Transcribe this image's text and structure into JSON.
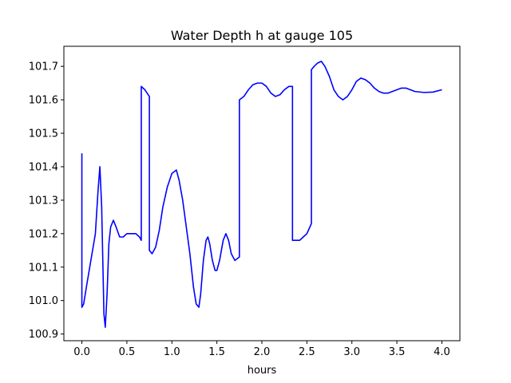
{
  "chart_data": {
    "type": "line",
    "title": "Water Depth h at gauge 105",
    "xlabel": "hours",
    "ylabel": "",
    "xlim": [
      -0.2,
      4.2
    ],
    "ylim": [
      100.88,
      101.76
    ],
    "xticks": [
      0.0,
      0.5,
      1.0,
      1.5,
      2.0,
      2.5,
      3.0,
      3.5,
      4.0
    ],
    "xtick_labels": [
      "0.0",
      "0.5",
      "1.0",
      "1.5",
      "2.0",
      "2.5",
      "3.0",
      "3.5",
      "4.0"
    ],
    "yticks": [
      100.9,
      101.0,
      101.1,
      101.2,
      101.3,
      101.4,
      101.5,
      101.6,
      101.7
    ],
    "ytick_labels": [
      "100.9",
      "101.0",
      "101.1",
      "101.2",
      "101.3",
      "101.4",
      "101.5",
      "101.6",
      "101.7"
    ],
    "grid": false,
    "series": [
      {
        "color": "#0000ff",
        "x": [
          0.0,
          0.0,
          0.02,
          0.05,
          0.1,
          0.15,
          0.18,
          0.2,
          0.22,
          0.245,
          0.26,
          0.28,
          0.3,
          0.32,
          0.35,
          0.38,
          0.42,
          0.46,
          0.5,
          0.55,
          0.6,
          0.64,
          0.66,
          0.66,
          0.7,
          0.75,
          0.75,
          0.78,
          0.82,
          0.86,
          0.9,
          0.95,
          1.0,
          1.05,
          1.08,
          1.12,
          1.16,
          1.2,
          1.24,
          1.27,
          1.3,
          1.32,
          1.35,
          1.38,
          1.4,
          1.42,
          1.45,
          1.48,
          1.5,
          1.53,
          1.57,
          1.6,
          1.63,
          1.66,
          1.7,
          1.75,
          1.75,
          1.8,
          1.85,
          1.9,
          1.95,
          2.0,
          2.05,
          2.1,
          2.15,
          2.2,
          2.25,
          2.3,
          2.34,
          2.34,
          2.38,
          2.42,
          2.46,
          2.5,
          2.55,
          2.55,
          2.58,
          2.62,
          2.66,
          2.7,
          2.75,
          2.8,
          2.85,
          2.9,
          2.95,
          3.0,
          3.05,
          3.1,
          3.15,
          3.2,
          3.25,
          3.3,
          3.35,
          3.4,
          3.45,
          3.5,
          3.55,
          3.6,
          3.65,
          3.7,
          3.8,
          3.9,
          4.0
        ],
        "y": [
          101.44,
          100.98,
          100.99,
          101.04,
          101.12,
          101.2,
          101.33,
          101.4,
          101.28,
          100.96,
          100.92,
          101.02,
          101.17,
          101.22,
          101.24,
          101.22,
          101.19,
          101.19,
          101.2,
          101.2,
          101.2,
          101.19,
          101.18,
          101.64,
          101.63,
          101.61,
          101.15,
          101.14,
          101.16,
          101.21,
          101.28,
          101.34,
          101.38,
          101.39,
          101.36,
          101.3,
          101.22,
          101.14,
          101.04,
          100.99,
          100.98,
          101.02,
          101.12,
          101.18,
          101.19,
          101.17,
          101.12,
          101.09,
          101.09,
          101.12,
          101.18,
          101.2,
          101.18,
          101.14,
          101.12,
          101.13,
          101.6,
          101.61,
          101.63,
          101.645,
          101.65,
          101.65,
          101.64,
          101.62,
          101.61,
          101.615,
          101.63,
          101.64,
          101.64,
          101.18,
          101.18,
          101.18,
          101.19,
          101.2,
          101.23,
          101.69,
          101.7,
          101.71,
          101.715,
          101.7,
          101.67,
          101.63,
          101.61,
          101.6,
          101.61,
          101.63,
          101.655,
          101.665,
          101.66,
          101.65,
          101.635,
          101.625,
          101.62,
          101.62,
          101.625,
          101.63,
          101.635,
          101.635,
          101.63,
          101.625,
          101.622,
          101.623,
          101.63
        ]
      }
    ]
  }
}
